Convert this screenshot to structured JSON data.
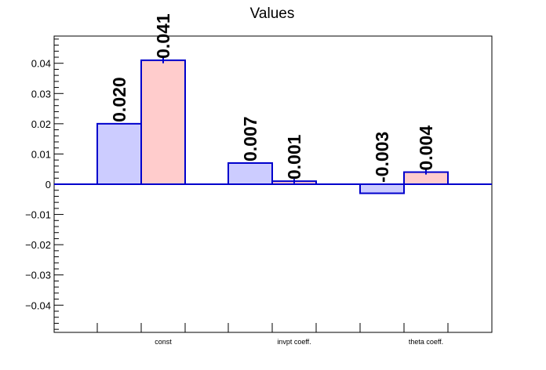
{
  "chart_data": {
    "type": "bar",
    "title": "Values",
    "xlabel": "",
    "ylabel": "",
    "categories": [
      "const",
      "invpt coeff.",
      "theta coeff."
    ],
    "series": [
      {
        "values": [
          0.02,
          0.007,
          -0.003
        ],
        "labels": [
          "0.020",
          "0.007",
          "-0.003"
        ],
        "errors": [
          0,
          0,
          0
        ],
        "fill": "#ccccff",
        "stroke": "#0000cc"
      },
      {
        "values": [
          0.041,
          0.001,
          0.004
        ],
        "labels": [
          "0.041",
          "0.001",
          "0.004"
        ],
        "errors": [
          0.001,
          0.0007,
          0.0008
        ],
        "fill": "#ffcccc",
        "stroke": "#0000cc"
      }
    ],
    "ylim": [
      -0.049,
      0.049
    ],
    "yticks": [
      -0.04,
      -0.03,
      -0.02,
      -0.01,
      0,
      0.01,
      0.02,
      0.03,
      0.04
    ],
    "ytick_labels": [
      "−0.04",
      "−0.03",
      "−0.02",
      "−0.01",
      "0",
      "0.01",
      "0.02",
      "0.03",
      "0.04"
    ],
    "grid": false,
    "legend": "none",
    "zero_line_color": "#0000cc"
  }
}
